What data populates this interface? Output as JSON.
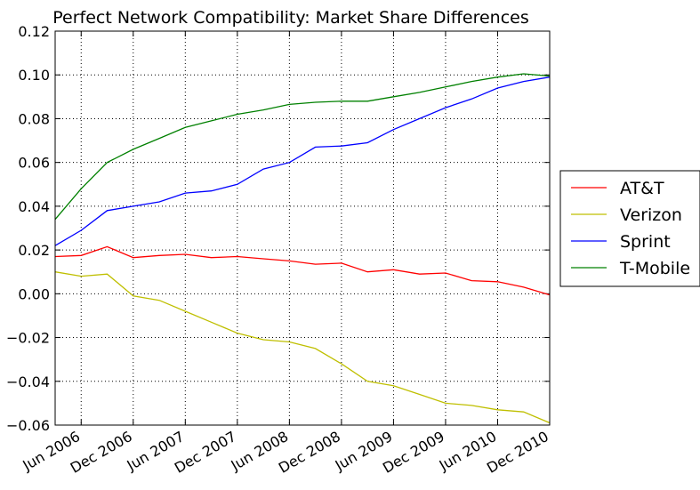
{
  "chart_data": {
    "type": "line",
    "title": "Perfect Network Compatibility: Market Share Differences",
    "x": [
      "2006-03",
      "2006-06",
      "2006-09",
      "2006-12",
      "2007-03",
      "2007-06",
      "2007-09",
      "2007-12",
      "2008-03",
      "2008-06",
      "2008-09",
      "2008-12",
      "2009-03",
      "2009-06",
      "2009-09",
      "2009-12",
      "2010-03",
      "2010-06",
      "2010-09",
      "2010-12"
    ],
    "xlim": [
      "2006-03",
      "2010-12"
    ],
    "xticks": [
      {
        "value": "2006-06",
        "label": "Jun 2006"
      },
      {
        "value": "2006-12",
        "label": "Dec 2006"
      },
      {
        "value": "2007-06",
        "label": "Jun 2007"
      },
      {
        "value": "2007-12",
        "label": "Dec 2007"
      },
      {
        "value": "2008-06",
        "label": "Jun 2008"
      },
      {
        "value": "2008-12",
        "label": "Dec 2008"
      },
      {
        "value": "2009-06",
        "label": "Jun 2009"
      },
      {
        "value": "2009-12",
        "label": "Dec 2009"
      },
      {
        "value": "2010-06",
        "label": "Jun 2010"
      },
      {
        "value": "2010-12",
        "label": "Dec 2010"
      }
    ],
    "ylim": [
      -0.06,
      0.12
    ],
    "yticks": [
      {
        "value": -0.06,
        "label": "−0.06"
      },
      {
        "value": -0.04,
        "label": "−0.04"
      },
      {
        "value": -0.02,
        "label": "−0.02"
      },
      {
        "value": 0,
        "label": "0.00"
      },
      {
        "value": 0.02,
        "label": "0.02"
      },
      {
        "value": 0.04,
        "label": "0.04"
      },
      {
        "value": 0.06,
        "label": "0.06"
      },
      {
        "value": 0.08,
        "label": "0.08"
      },
      {
        "value": 0.1,
        "label": "0.10"
      },
      {
        "value": 0.12,
        "label": "0.12"
      }
    ],
    "grid": true,
    "legend": "outside-right",
    "series": [
      {
        "name": "AT&T",
        "color": "#ff0000",
        "values": [
          0.017,
          0.0175,
          0.0215,
          0.0165,
          0.0175,
          0.018,
          0.0165,
          0.017,
          0.016,
          0.015,
          0.0135,
          0.014,
          0.01,
          0.011,
          0.009,
          0.0095,
          0.006,
          0.0055,
          0.003,
          -0.0005
        ]
      },
      {
        "name": "Verizon",
        "color": "#bfbf00",
        "values": [
          0.01,
          0.008,
          0.009,
          -0.001,
          -0.003,
          -0.008,
          -0.013,
          -0.018,
          -0.021,
          -0.022,
          -0.025,
          -0.032,
          -0.04,
          -0.042,
          -0.046,
          -0.05,
          -0.051,
          -0.053,
          -0.054,
          -0.059
        ]
      },
      {
        "name": "Sprint",
        "color": "#0000ff",
        "values": [
          0.022,
          0.029,
          0.038,
          0.04,
          0.042,
          0.046,
          0.047,
          0.05,
          0.057,
          0.06,
          0.067,
          0.0675,
          0.069,
          0.075,
          0.08,
          0.085,
          0.089,
          0.094,
          0.097,
          0.099
        ]
      },
      {
        "name": "T-Mobile",
        "color": "#008000",
        "values": [
          0.034,
          0.048,
          0.06,
          0.066,
          0.071,
          0.076,
          0.079,
          0.082,
          0.084,
          0.0865,
          0.0875,
          0.088,
          0.088,
          0.09,
          0.092,
          0.0945,
          0.097,
          0.099,
          0.1005,
          0.0995
        ]
      }
    ]
  }
}
